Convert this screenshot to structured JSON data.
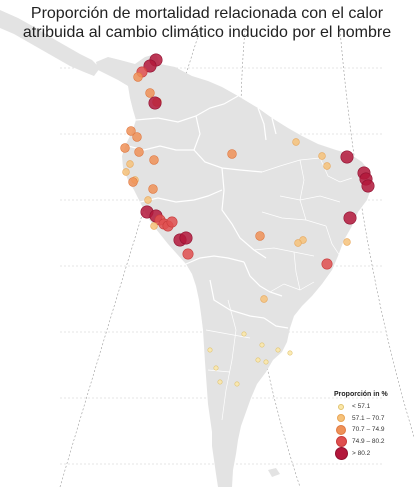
{
  "title": "Proporción de mortalidad relacionada con el calor atribuida al cambio climático inducido por el hombre",
  "legend": {
    "title": "Proporción in %",
    "items": [
      {
        "label": "< 57.1",
        "color": "#fbe7a8",
        "stroke": "#e0c370"
      },
      {
        "label": "57.1 – 70.7",
        "color": "#f6c27a",
        "stroke": "#e8a658"
      },
      {
        "label": "70.7 – 74.9",
        "color": "#ee9157",
        "stroke": "#e07840"
      },
      {
        "label": "74.9 – 80.2",
        "color": "#df4f4f",
        "stroke": "#c83b3b"
      },
      {
        "label": "> 80.2",
        "color": "#b3173b",
        "stroke": "#901030"
      }
    ]
  },
  "colors": {
    "land": "#e3e3e3",
    "border": "#ffffff",
    "graticule": "#bdbdbd"
  }
}
